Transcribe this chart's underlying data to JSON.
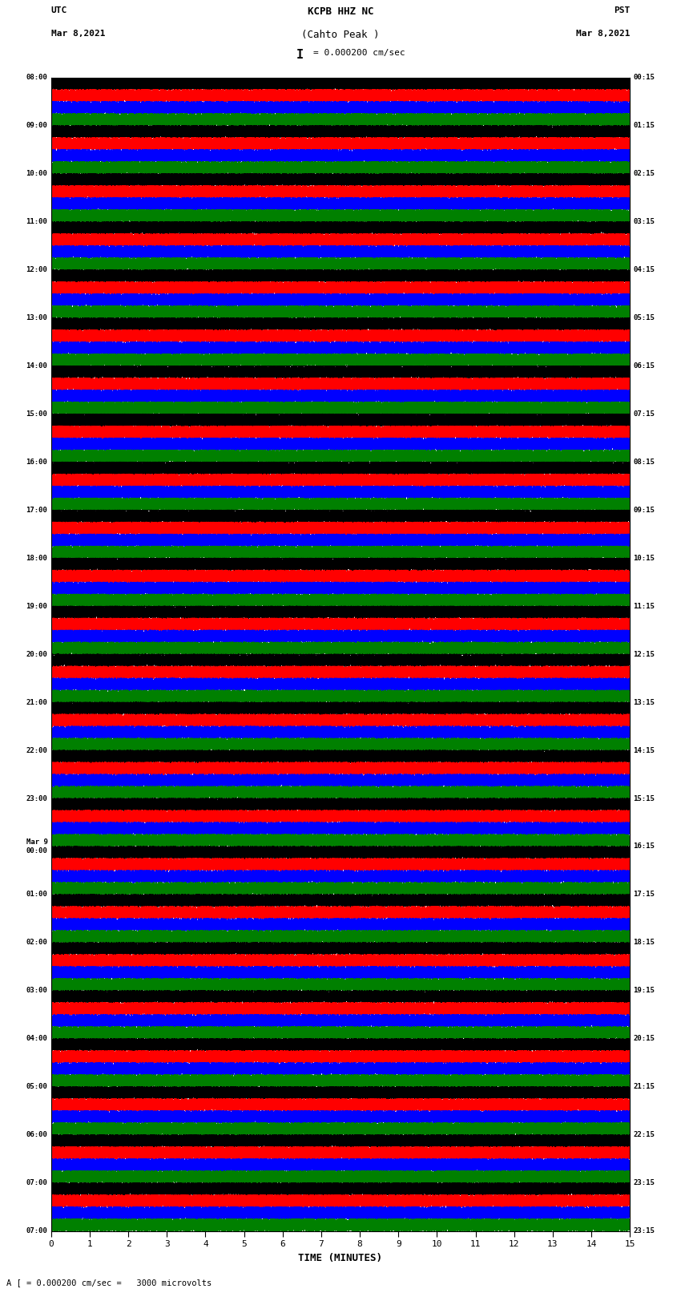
{
  "title_line1": "KCPB HHZ NC",
  "title_line2": "(Cahto Peak )",
  "scale_text": "= 0.000200 cm/sec",
  "scale_bar": "I",
  "left_label": "UTC",
  "right_label": "PST",
  "left_date": "Mar 8,2021",
  "right_date": "Mar 8,2021",
  "bottom_label": "TIME (MINUTES)",
  "bottom_note": "A [ = 0.000200 cm/sec =   3000 microvolts",
  "utc_times": [
    "08:00",
    "09:00",
    "10:00",
    "11:00",
    "12:00",
    "13:00",
    "14:00",
    "15:00",
    "16:00",
    "17:00",
    "18:00",
    "19:00",
    "20:00",
    "21:00",
    "22:00",
    "23:00",
    "Mar 9\n00:00",
    "01:00",
    "02:00",
    "03:00",
    "04:00",
    "05:00",
    "06:00",
    "07:00"
  ],
  "pst_times": [
    "00:15",
    "01:15",
    "02:15",
    "03:15",
    "04:15",
    "05:15",
    "06:15",
    "07:15",
    "08:15",
    "09:15",
    "10:15",
    "11:15",
    "12:15",
    "13:15",
    "14:15",
    "15:15",
    "16:15",
    "17:15",
    "18:15",
    "19:15",
    "20:15",
    "21:15",
    "22:15",
    "23:15"
  ],
  "n_traces": 24,
  "n_subtraces": 4,
  "trace_duration_minutes": 15,
  "sample_rate": 100,
  "colors": [
    "black",
    "red",
    "blue",
    "green"
  ],
  "bg_color": "white",
  "fig_width": 8.5,
  "fig_height": 16.13,
  "dpi": 100
}
